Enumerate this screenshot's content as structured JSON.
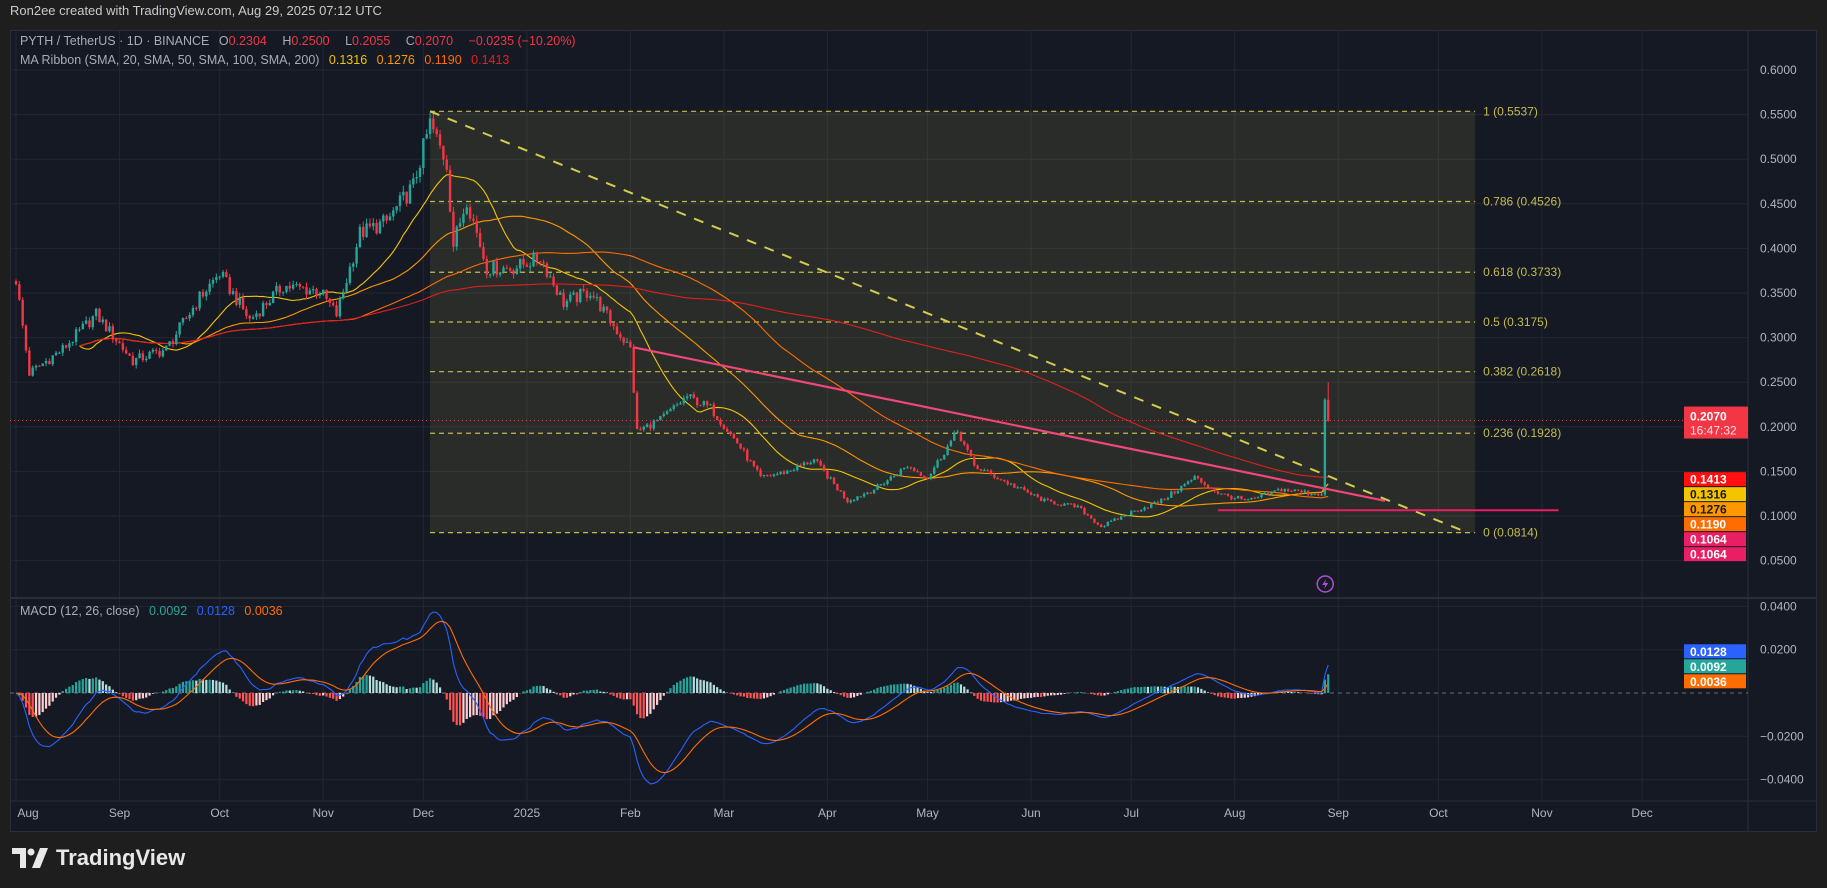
{
  "credit": "Ron2ee created with TradingView.com, Aug 29, 2025 07:12 UTC",
  "legend": {
    "symbol": "PYTH / TetherUS · 1D · BINANCE",
    "o_label": "O",
    "open": "0.2304",
    "h_label": "H",
    "high": "0.2500",
    "l_label": "L",
    "low": "0.2055",
    "c_label": "C",
    "close": "0.2070",
    "change": "−0.0235 (−10.20%)",
    "ma_title": "MA Ribbon (SMA, 20, SMA, 50, SMA, 100, SMA, 200)",
    "ma_values": [
      "0.1316",
      "0.1276",
      "0.1190",
      "0.1413"
    ],
    "macd_title": "MACD (12, 26, close)",
    "macd_values": [
      "0.0092",
      "0.0128",
      "0.0036"
    ]
  },
  "logo": "TradingView",
  "colors": {
    "up": "#26a69a",
    "down": "#f23645",
    "ma20": "#f5c400",
    "ma50": "#ff9800",
    "ma100": "#ff6d00",
    "ma200": "#e02020",
    "macd": "#2962ff",
    "signal": "#ff6d00",
    "fib": "#c4bd4c",
    "trend": "#f0467a",
    "hline": "#e91e63"
  },
  "chart_data": [
    {
      "type": "candlestick",
      "title": "PYTH / TetherUS · 1D · BINANCE",
      "price_scale": "linear",
      "ylim": [
        0.03,
        0.62
      ],
      "y_ticks": [
        "0.6000",
        "0.5500",
        "0.5000",
        "0.4500",
        "0.4000",
        "0.3500",
        "0.3000",
        "0.2500",
        "0.2000",
        "0.1500",
        "0.1000",
        "0.0500"
      ],
      "x_ticks": [
        {
          "date": "2024-08-01",
          "label": "Aug"
        },
        {
          "date": "2024-09-01",
          "label": "Sep"
        },
        {
          "date": "2024-10-01",
          "label": "Oct"
        },
        {
          "date": "2024-11-01",
          "label": "Nov"
        },
        {
          "date": "2024-12-01",
          "label": "Dec"
        },
        {
          "date": "2025-01-01",
          "label": "2025"
        },
        {
          "date": "2025-02-01",
          "label": "Feb"
        },
        {
          "date": "2025-03-01",
          "label": "Mar"
        },
        {
          "date": "2025-04-01",
          "label": "Apr"
        },
        {
          "date": "2025-05-01",
          "label": "May"
        },
        {
          "date": "2025-06-01",
          "label": "Jun"
        },
        {
          "date": "2025-07-01",
          "label": "Jul"
        },
        {
          "date": "2025-08-01",
          "label": "Aug"
        },
        {
          "date": "2025-09-01",
          "label": "Sep"
        },
        {
          "date": "2025-10-01",
          "label": "Oct"
        },
        {
          "date": "2025-11-01",
          "label": "Nov"
        },
        {
          "date": "2025-12-01",
          "label": "Dec"
        }
      ],
      "close_path": [
        [
          "2024-08-01",
          0.365
        ],
        [
          "2024-08-05",
          0.26
        ],
        [
          "2024-08-15",
          0.287
        ],
        [
          "2024-08-25",
          0.326
        ],
        [
          "2024-09-05",
          0.274
        ],
        [
          "2024-09-15",
          0.287
        ],
        [
          "2024-09-25",
          0.345
        ],
        [
          "2024-10-01",
          0.372
        ],
        [
          "2024-10-10",
          0.32
        ],
        [
          "2024-10-20",
          0.358
        ],
        [
          "2024-10-31",
          0.352
        ],
        [
          "2024-11-05",
          0.326
        ],
        [
          "2024-11-12",
          0.417
        ],
        [
          "2024-11-20",
          0.43
        ],
        [
          "2024-11-28",
          0.47
        ],
        [
          "2024-12-03",
          0.54
        ],
        [
          "2024-12-08",
          0.495
        ],
        [
          "2024-12-10",
          0.404
        ],
        [
          "2024-12-14",
          0.456
        ],
        [
          "2024-12-20",
          0.378
        ],
        [
          "2024-12-28",
          0.378
        ],
        [
          "2025-01-05",
          0.39
        ],
        [
          "2025-01-12",
          0.339
        ],
        [
          "2025-01-20",
          0.352
        ],
        [
          "2025-01-27",
          0.313
        ],
        [
          "2025-02-01",
          0.287
        ],
        [
          "2025-02-03",
          0.195
        ],
        [
          "2025-02-10",
          0.208
        ],
        [
          "2025-02-18",
          0.234
        ],
        [
          "2025-02-25",
          0.221
        ],
        [
          "2025-03-05",
          0.182
        ],
        [
          "2025-03-12",
          0.143
        ],
        [
          "2025-03-20",
          0.15
        ],
        [
          "2025-03-28",
          0.163
        ],
        [
          "2025-04-07",
          0.117
        ],
        [
          "2025-04-15",
          0.13
        ],
        [
          "2025-04-25",
          0.156
        ],
        [
          "2025-05-01",
          0.143
        ],
        [
          "2025-05-10",
          0.195
        ],
        [
          "2025-05-15",
          0.156
        ],
        [
          "2025-05-25",
          0.137
        ],
        [
          "2025-06-05",
          0.117
        ],
        [
          "2025-06-15",
          0.11
        ],
        [
          "2025-06-22",
          0.088
        ],
        [
          "2025-07-01",
          0.104
        ],
        [
          "2025-07-10",
          0.117
        ],
        [
          "2025-07-20",
          0.143
        ],
        [
          "2025-07-28",
          0.124
        ],
        [
          "2025-08-05",
          0.117
        ],
        [
          "2025-08-15",
          0.13
        ],
        [
          "2025-08-27",
          0.124
        ],
        [
          "2025-08-28",
          0.2304
        ]
      ],
      "last_candle": {
        "date": "2025-08-29",
        "open": 0.2304,
        "high": 0.25,
        "low": 0.2055,
        "close": 0.207
      },
      "last_price": {
        "value": "0.2070",
        "countdown": "16:47:32"
      },
      "price_badges": [
        {
          "value": "0.1413",
          "color": "#ff1010",
          "text": "#ffffff"
        },
        {
          "value": "0.1316",
          "color": "#f5c400",
          "text": "#1a1a1a"
        },
        {
          "value": "0.1276",
          "color": "#ff9800",
          "text": "#1a1a1a"
        },
        {
          "value": "0.1190",
          "color": "#ff6d00",
          "text": "#ffffff"
        },
        {
          "value": "0.1064",
          "color": "#e91e63",
          "text": "#ffffff"
        },
        {
          "value": "0.1064",
          "color": "#e91e63",
          "text": "#ffffff"
        }
      ],
      "moving_averages": [
        20,
        50,
        100,
        200
      ],
      "fib_retracement": {
        "start": "2024-12-03",
        "end": "2025-10-12",
        "levels": [
          {
            "ratio": 1,
            "price": 0.5537,
            "label": "1 (0.5537)"
          },
          {
            "ratio": 0.786,
            "price": 0.4526,
            "label": "0.786 (0.4526)"
          },
          {
            "ratio": 0.618,
            "price": 0.3733,
            "label": "0.618 (0.3733)"
          },
          {
            "ratio": 0.5,
            "price": 0.3175,
            "label": "0.5 (0.3175)"
          },
          {
            "ratio": 0.382,
            "price": 0.2618,
            "label": "0.382 (0.2618)"
          },
          {
            "ratio": 0.236,
            "price": 0.1928,
            "label": "0.236 (0.1928)"
          },
          {
            "ratio": 0,
            "price": 0.0814,
            "label": "0 (0.0814)"
          }
        ]
      },
      "drawings": [
        {
          "kind": "dashed-trendline",
          "from": [
            "2024-12-03",
            0.5537
          ],
          "to": [
            "2025-10-08",
            0.084
          ]
        },
        {
          "kind": "trendline",
          "from": [
            "2025-02-02",
            0.289
          ],
          "to": [
            "2025-09-15",
            0.117
          ]
        },
        {
          "kind": "horizontal-line",
          "from": [
            "2025-07-27",
            0.1064
          ],
          "to": [
            "2025-11-06",
            0.1064
          ]
        }
      ]
    },
    {
      "type": "macd",
      "title": "MACD (12, 26, close)",
      "ylim": [
        -0.048,
        0.042
      ],
      "y_ticks": [
        "0.0400",
        "0.0200",
        "−0.0200",
        "−0.0400"
      ],
      "badges": [
        {
          "value": "0.0128",
          "color": "#2962ff"
        },
        {
          "value": "0.0092",
          "color": "#26a69a"
        },
        {
          "value": "0.0036",
          "color": "#ff6d00"
        }
      ]
    }
  ]
}
